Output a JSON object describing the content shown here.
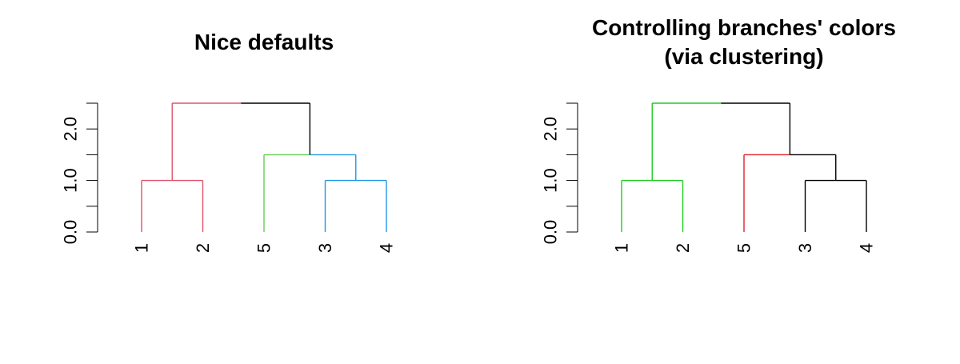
{
  "chart_data": [
    {
      "type": "dendrogram",
      "title_lines": [
        "Nice defaults"
      ],
      "xlabel": "",
      "ylabel": "",
      "ylim": [
        0,
        2.5
      ],
      "y_ticks": [
        0,
        0.5,
        1,
        1.5,
        2,
        2.5
      ],
      "y_tick_labels": [
        "0.0",
        "",
        "1.0",
        "",
        "2.0",
        ""
      ],
      "leaf_order": [
        "1",
        "2",
        "5",
        "3",
        "4"
      ],
      "merges": [
        {
          "left": "1",
          "right": "2",
          "height": 1.0,
          "color": "#DF536B"
        },
        {
          "left": "3",
          "right": "4",
          "height": 1.0,
          "color": "#2297E6"
        },
        {
          "left": "5",
          "right": "(3,4)",
          "height": 1.5,
          "left_color": "#61D04F",
          "right_color": "#2297E6"
        },
        {
          "left": "(1,2)",
          "right": "(5,(3,4))",
          "height": 2.5,
          "left_color": "#DF536B",
          "right_color": "#000000"
        }
      ],
      "leaf_colors": {
        "1": "#DF536B",
        "2": "#DF536B",
        "5": "#28A745",
        "3": "#2297E6",
        "4": "#2297E6"
      }
    },
    {
      "type": "dendrogram",
      "title_lines": [
        "Controlling branches' colors",
        "(via clustering)"
      ],
      "xlabel": "",
      "ylabel": "",
      "ylim": [
        0,
        2.5
      ],
      "y_ticks": [
        0,
        0.5,
        1,
        1.5,
        2,
        2.5
      ],
      "y_tick_labels": [
        "0.0",
        "",
        "1.0",
        "",
        "2.0",
        ""
      ],
      "leaf_order": [
        "1",
        "2",
        "5",
        "3",
        "4"
      ],
      "merges": [
        {
          "left": "1",
          "right": "2",
          "height": 1.0,
          "color": "#22CC22"
        },
        {
          "left": "3",
          "right": "4",
          "height": 1.0,
          "color": "#000000"
        },
        {
          "left": "5",
          "right": "(3,4)",
          "height": 1.5,
          "left_color": "#E0202A",
          "right_color": "#000000"
        },
        {
          "left": "(1,2)",
          "right": "(5,(3,4))",
          "height": 2.5,
          "left_color": "#22CC22",
          "right_color": "#000000"
        }
      ],
      "leaf_colors": {
        "1": "#22CC22",
        "2": "#22CC22",
        "5": "#E0202A",
        "3": "#000000",
        "4": "#000000"
      }
    }
  ]
}
